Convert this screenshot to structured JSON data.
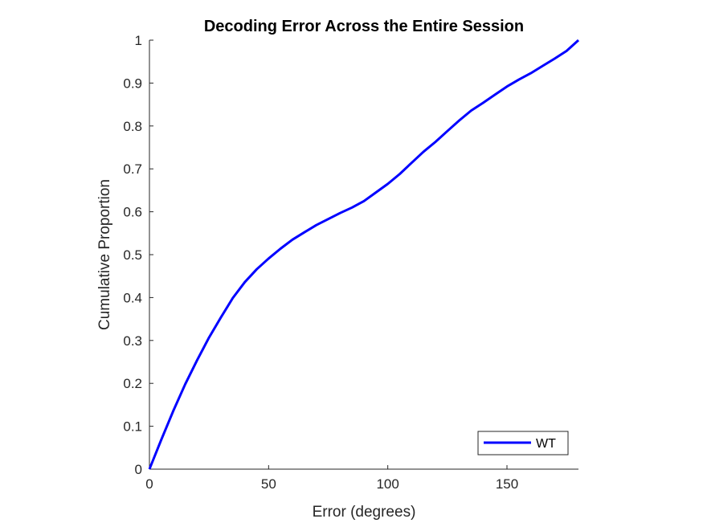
{
  "chart_data": {
    "type": "line",
    "title": "Decoding Error Across the Entire Session",
    "xlabel": "Error (degrees)",
    "ylabel": "Cumulative Proportion",
    "xlim": [
      0,
      180
    ],
    "ylim": [
      0,
      1
    ],
    "xticks": [
      0,
      50,
      100,
      150
    ],
    "yticks": [
      0,
      0.1,
      0.2,
      0.3,
      0.4,
      0.5,
      0.6,
      0.7,
      0.8,
      0.9,
      1
    ],
    "xtick_labels": [
      "0",
      "50",
      "100",
      "150"
    ],
    "ytick_labels": [
      "0",
      "0.1",
      "0.2",
      "0.3",
      "0.4",
      "0.5",
      "0.6",
      "0.7",
      "0.8",
      "0.9",
      "1"
    ],
    "grid": false,
    "legend": {
      "placement": "bottom-right",
      "entries": [
        "WT"
      ]
    },
    "series": [
      {
        "name": "WT",
        "color": "#0000ff",
        "x": [
          0,
          5,
          10,
          15,
          20,
          25,
          30,
          35,
          40,
          45,
          50,
          55,
          60,
          65,
          70,
          75,
          80,
          85,
          90,
          95,
          100,
          105,
          110,
          115,
          120,
          125,
          130,
          135,
          140,
          145,
          150,
          155,
          160,
          165,
          170,
          175,
          180
        ],
        "y": [
          0,
          0.069,
          0.136,
          0.198,
          0.254,
          0.307,
          0.354,
          0.399,
          0.436,
          0.466,
          0.491,
          0.514,
          0.535,
          0.552,
          0.569,
          0.583,
          0.597,
          0.61,
          0.625,
          0.645,
          0.665,
          0.688,
          0.714,
          0.74,
          0.763,
          0.788,
          0.813,
          0.836,
          0.854,
          0.873,
          0.892,
          0.908,
          0.923,
          0.94,
          0.957,
          0.975,
          1.0
        ]
      }
    ]
  }
}
